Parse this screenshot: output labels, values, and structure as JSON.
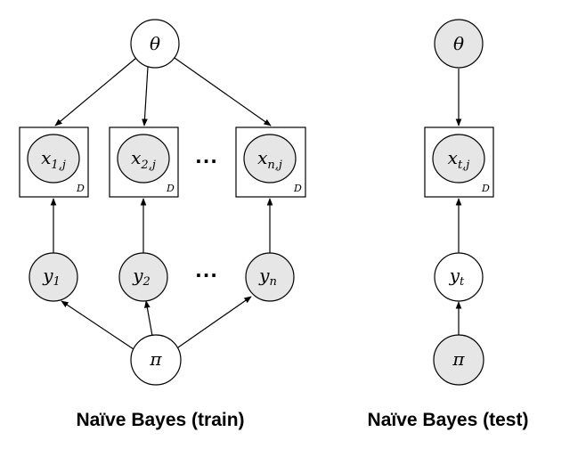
{
  "train": {
    "caption": "Naïve Bayes (train)",
    "theta_label": "θ",
    "pi_label": "π",
    "plate_label": "D",
    "ellipsis_top": "···",
    "ellipsis_bottom": "···",
    "x_nodes": [
      {
        "base": "x",
        "sub": "1,j"
      },
      {
        "base": "x",
        "sub": "2,j"
      },
      {
        "base": "x",
        "sub": "n,j"
      }
    ],
    "y_nodes": [
      {
        "base": "y",
        "sub": "1",
        "shaded": true
      },
      {
        "base": "y",
        "sub": "2",
        "shaded": true
      },
      {
        "base": "y",
        "sub": "n",
        "shaded": true
      }
    ]
  },
  "test": {
    "caption": "Naïve Bayes (test)",
    "theta_label": "θ",
    "pi_label": "π",
    "plate_label": "D",
    "x_node": {
      "base": "x",
      "sub": "t,j"
    },
    "y_node": {
      "base": "y",
      "sub": "t",
      "shaded": false
    }
  },
  "colors": {
    "observed_fill": "#e6e6e6",
    "latent_fill": "#ffffff",
    "stroke": "#000000"
  }
}
